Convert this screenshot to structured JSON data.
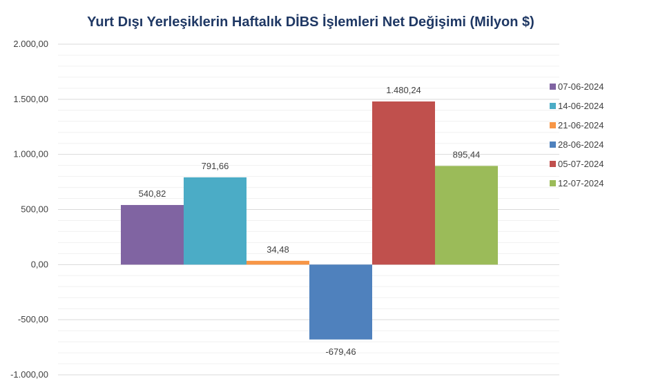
{
  "chart_data": {
    "type": "bar",
    "title": "Yurt Dışı Yerleşiklerin Haftalık DİBS İşlemleri Net Değişimi (Milyon $)",
    "xlabel": "",
    "ylabel": "",
    "ylim": [
      -1000,
      2000
    ],
    "yticks": [
      2000,
      1500,
      1000,
      500,
      0,
      -500,
      -1000
    ],
    "ytick_labels": [
      "2.000,00",
      "1.500,00",
      "1.000,00",
      "500,00",
      "0,00",
      "-500,00",
      "-1.000,00"
    ],
    "grid": true,
    "legend_position": "right",
    "series": [
      {
        "name": "07-06-2024",
        "value": 540.82,
        "label": "540,82",
        "color": "#8064A2"
      },
      {
        "name": "14-06-2024",
        "value": 791.66,
        "label": "791,66",
        "color": "#4BACC6"
      },
      {
        "name": "21-06-2024",
        "value": 34.48,
        "label": "34,48",
        "color": "#F79646"
      },
      {
        "name": "28-06-2024",
        "value": -679.46,
        "label": "-679,46",
        "color": "#4F81BD"
      },
      {
        "name": "05-07-2024",
        "value": 1480.24,
        "label": "1.480,24",
        "color": "#C0504D"
      },
      {
        "name": "12-07-2024",
        "value": 895.44,
        "label": "895,44",
        "color": "#9BBB59"
      }
    ]
  },
  "colors": {
    "title": "#1F3864",
    "text": "#404040",
    "gridline": "#D9D9D9",
    "minor_gridline": "#F0F0F0"
  }
}
